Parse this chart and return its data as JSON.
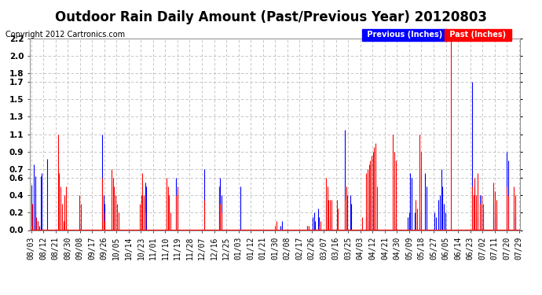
{
  "title": "Outdoor Rain Daily Amount (Past/Previous Year) 20120803",
  "copyright": "Copyright 2012 Cartronics.com",
  "legend_previous": "Previous (Inches)",
  "legend_past": "Past (Inches)",
  "ylim": [
    0.0,
    2.2
  ],
  "yticks": [
    0.0,
    0.2,
    0.4,
    0.6,
    0.7,
    0.9,
    1.1,
    1.3,
    1.5,
    1.7,
    1.8,
    2.0,
    2.2
  ],
  "color_previous": "#0000FF",
  "color_past": "#FF0000",
  "color_black": "#111111",
  "bg_color": "#FFFFFF",
  "grid_color": "#BBBBBB",
  "x_labels": [
    "08/03",
    "08/12",
    "08/21",
    "08/30",
    "09/08",
    "09/17",
    "09/26",
    "10/05",
    "10/14",
    "10/23",
    "11/01",
    "11/10",
    "11/19",
    "11/28",
    "12/07",
    "12/16",
    "12/25",
    "01/03",
    "01/12",
    "01/21",
    "01/30",
    "02/08",
    "02/17",
    "02/26",
    "03/07",
    "03/16",
    "03/25",
    "04/03",
    "04/12",
    "04/21",
    "04/30",
    "05/09",
    "05/18",
    "05/27",
    "06/05",
    "06/14",
    "06/23",
    "07/02",
    "07/11",
    "07/20",
    "07/29"
  ],
  "num_points": 365,
  "title_fontsize": 12,
  "tick_fontsize": 7,
  "copyright_fontsize": 7,
  "prev_data": [
    0.52,
    0.0,
    0.75,
    0.62,
    0.0,
    0.1,
    0.05,
    0.62,
    0.65,
    0.0,
    0.0,
    0.0,
    0.82,
    0.0,
    0.0,
    0.0,
    0.0,
    0.0,
    0.0,
    0.0,
    0.0,
    0.0,
    0.0,
    0.0,
    0.0,
    0.0,
    0.0,
    0.0,
    0.0,
    0.0,
    0.0,
    0.0,
    0.0,
    0.0,
    0.0,
    0.0,
    0.1,
    0.05,
    0.0,
    0.0,
    0.0,
    0.0,
    0.0,
    0.0,
    0.0,
    0.0,
    0.0,
    0.0,
    0.0,
    0.0,
    0.0,
    0.0,
    0.0,
    1.1,
    0.4,
    0.3,
    0.0,
    0.0,
    0.0,
    0.0,
    0.0,
    0.0,
    0.0,
    0.0,
    0.0,
    0.0,
    0.0,
    0.0,
    0.0,
    0.0,
    0.0,
    0.0,
    0.0,
    0.0,
    0.0,
    0.0,
    0.0,
    0.0,
    0.0,
    0.0,
    0.0,
    0.0,
    0.0,
    0.0,
    0.0,
    0.55,
    0.5,
    0.0,
    0.0,
    0.0,
    0.0,
    0.0,
    0.0,
    0.0,
    0.0,
    0.0,
    0.0,
    0.0,
    0.0,
    0.0,
    0.0,
    0.0,
    0.0,
    0.0,
    0.0,
    0.0,
    0.0,
    0.0,
    0.6,
    0.4,
    0.0,
    0.0,
    0.0,
    0.0,
    0.0,
    0.0,
    0.0,
    0.0,
    0.0,
    0.0,
    0.0,
    0.0,
    0.0,
    0.0,
    0.0,
    0.0,
    0.0,
    0.0,
    0.0,
    0.7,
    0.0,
    0.0,
    0.0,
    0.0,
    0.0,
    0.0,
    0.0,
    0.0,
    0.0,
    0.0,
    0.5,
    0.6,
    0.4,
    0.0,
    0.0,
    0.0,
    0.0,
    0.0,
    0.0,
    0.0,
    0.0,
    0.0,
    0.0,
    0.0,
    0.0,
    0.0,
    0.5,
    0.0,
    0.0,
    0.0,
    0.0,
    0.0,
    0.0,
    0.0,
    0.0,
    0.0,
    0.0,
    0.0,
    0.0,
    0.0,
    0.0,
    0.0,
    0.0,
    0.0,
    0.0,
    0.0,
    0.0,
    0.0,
    0.0,
    0.0,
    0.0,
    0.0,
    0.0,
    0.0,
    0.0,
    0.0,
    0.05,
    0.1,
    0.0,
    0.0,
    0.0,
    0.0,
    0.0,
    0.0,
    0.0,
    0.0,
    0.0,
    0.0,
    0.0,
    0.0,
    0.0,
    0.0,
    0.0,
    0.0,
    0.0,
    0.0,
    0.05,
    0.0,
    0.0,
    0.0,
    0.15,
    0.2,
    0.1,
    0.0,
    0.25,
    0.15,
    0.0,
    0.0,
    0.0,
    0.0,
    0.35,
    0.15,
    0.0,
    0.15,
    0.1,
    0.0,
    0.0,
    0.0,
    0.0,
    0.0,
    0.0,
    0.0,
    0.0,
    0.0,
    1.15,
    0.0,
    0.0,
    0.0,
    0.4,
    0.3,
    0.0,
    0.0,
    0.0,
    0.0,
    0.0,
    0.0,
    0.0,
    0.0,
    0.0,
    0.0,
    0.15,
    0.2,
    0.1,
    0.35,
    0.4,
    0.3,
    0.0,
    0.0,
    0.0,
    0.0,
    0.0,
    0.0,
    0.0,
    0.0,
    0.0,
    0.0,
    0.0,
    0.0,
    0.0,
    0.0,
    0.0,
    0.2,
    0.1,
    0.0,
    0.0,
    0.0,
    0.0,
    0.0,
    0.0,
    0.0,
    0.0,
    0.15,
    0.2,
    0.65,
    0.6,
    0.0,
    0.2,
    0.1,
    0.0,
    0.0,
    0.15,
    0.2,
    0.0,
    0.0,
    0.65,
    0.5,
    0.0,
    0.0,
    0.0,
    0.0,
    0.0,
    0.2,
    0.15,
    0.0,
    0.35,
    0.4,
    0.7,
    0.5,
    0.3,
    0.2,
    0.0,
    0.0,
    0.0,
    0.0,
    0.0,
    0.0,
    0.0,
    0.0,
    0.0,
    0.0,
    0.0,
    0.0,
    0.0,
    0.0,
    0.0,
    0.0,
    0.0,
    0.0,
    0.0,
    1.7,
    0.4,
    0.5,
    0.2,
    0.15,
    0.0,
    0.4,
    0.3,
    0.2,
    0.0,
    0.0,
    0.0,
    0.0,
    0.0,
    0.0,
    0.0,
    0.3,
    0.15,
    0.2,
    0.0,
    0.0,
    0.0,
    0.0,
    0.0,
    0.0,
    0.0,
    0.9,
    0.8,
    0.0,
    0.0,
    0.0,
    0.2,
    0.15,
    0.0,
    0.0,
    0.0
  ],
  "past_data": [
    0.05,
    0.3,
    0.0,
    0.0,
    0.15,
    0.1,
    0.0,
    0.0,
    0.0,
    0.0,
    0.0,
    0.0,
    0.0,
    0.0,
    0.0,
    0.0,
    0.0,
    0.0,
    0.0,
    0.0,
    1.1,
    0.65,
    0.5,
    0.3,
    0.1,
    0.4,
    0.5,
    0.0,
    0.0,
    0.0,
    0.0,
    0.0,
    0.0,
    0.0,
    0.0,
    0.0,
    0.4,
    0.3,
    0.0,
    0.0,
    0.0,
    0.0,
    0.0,
    0.0,
    0.0,
    0.0,
    0.0,
    0.0,
    0.0,
    0.0,
    0.0,
    0.0,
    0.0,
    0.6,
    0.2,
    0.1,
    0.0,
    0.0,
    0.0,
    0.0,
    0.7,
    0.6,
    0.5,
    0.4,
    0.3,
    0.2,
    0.0,
    0.0,
    0.0,
    0.0,
    0.0,
    0.0,
    0.0,
    0.0,
    0.0,
    0.0,
    0.0,
    0.0,
    0.0,
    0.0,
    0.0,
    0.3,
    0.4,
    0.65,
    0.4,
    0.2,
    0.0,
    0.0,
    0.0,
    0.0,
    0.0,
    0.0,
    0.0,
    0.0,
    0.0,
    0.0,
    0.0,
    0.0,
    0.0,
    0.0,
    0.0,
    0.6,
    0.5,
    0.4,
    0.2,
    0.0,
    0.0,
    0.0,
    0.4,
    0.5,
    0.0,
    0.0,
    0.0,
    0.0,
    0.0,
    0.0,
    0.0,
    0.0,
    0.0,
    0.0,
    0.0,
    0.0,
    0.0,
    0.0,
    0.0,
    0.0,
    0.0,
    0.0,
    0.0,
    0.35,
    0.0,
    0.0,
    0.0,
    0.0,
    0.0,
    0.0,
    0.0,
    0.0,
    0.0,
    0.0,
    0.5,
    0.3,
    0.2,
    0.0,
    0.0,
    0.0,
    0.0,
    0.0,
    0.0,
    0.0,
    0.0,
    0.0,
    0.0,
    0.0,
    0.0,
    0.0,
    0.0,
    0.0,
    0.0,
    0.0,
    0.0,
    0.0,
    0.0,
    0.0,
    0.0,
    0.0,
    0.0,
    0.0,
    0.0,
    0.0,
    0.0,
    0.0,
    0.0,
    0.0,
    0.0,
    0.0,
    0.0,
    0.0,
    0.0,
    0.0,
    0.0,
    0.0,
    0.05,
    0.1,
    0.0,
    0.0,
    0.0,
    0.0,
    0.0,
    0.0,
    0.0,
    0.0,
    0.0,
    0.0,
    0.0,
    0.0,
    0.0,
    0.0,
    0.0,
    0.0,
    0.0,
    0.0,
    0.0,
    0.0,
    0.0,
    0.0,
    0.05,
    0.05,
    0.0,
    0.0,
    0.0,
    0.0,
    0.0,
    0.0,
    0.0,
    0.05,
    0.1,
    0.0,
    0.0,
    0.0,
    0.6,
    0.5,
    0.35,
    0.35,
    0.35,
    0.0,
    0.0,
    0.0,
    0.35,
    0.25,
    0.0,
    0.0,
    0.0,
    0.0,
    0.35,
    0.5,
    0.4,
    0.0,
    0.0,
    0.0,
    0.0,
    0.0,
    0.0,
    0.0,
    0.0,
    0.0,
    0.0,
    0.15,
    0.0,
    0.0,
    0.65,
    0.7,
    0.75,
    0.8,
    0.85,
    0.9,
    0.95,
    1.0,
    0.5,
    0.0,
    0.0,
    0.0,
    0.0,
    0.0,
    0.0,
    0.0,
    0.0,
    0.0,
    0.0,
    0.0,
    1.1,
    0.9,
    0.8,
    0.0,
    0.0,
    0.0,
    0.0,
    0.0,
    0.0,
    0.0,
    0.0,
    0.0,
    0.0,
    0.0,
    0.0,
    0.0,
    0.0,
    0.35,
    0.25,
    0.0,
    1.1,
    0.9,
    0.0,
    0.0,
    0.0,
    0.0,
    0.0,
    0.0,
    0.0,
    0.0,
    0.0,
    0.0,
    0.0,
    0.0,
    0.0,
    0.0,
    0.0,
    0.0,
    0.0,
    0.0,
    0.0,
    0.0,
    0.0,
    2.2,
    0.0,
    0.0,
    0.0,
    0.0,
    0.0,
    0.0,
    0.0,
    0.0,
    0.0,
    0.0,
    0.0,
    0.0,
    0.0,
    0.0,
    0.0,
    0.5,
    0.4,
    0.6,
    0.4,
    0.65,
    0.0,
    0.3,
    0.4,
    0.3,
    0.0,
    0.0,
    0.0,
    0.0,
    0.0,
    0.0,
    0.0,
    0.55,
    0.45,
    0.35,
    0.0,
    0.0,
    0.0,
    0.0,
    0.0,
    0.0,
    0.0,
    0.5,
    0.4,
    0.0,
    0.0,
    0.0,
    0.5,
    0.4,
    0.0,
    0.0,
    0.0
  ]
}
